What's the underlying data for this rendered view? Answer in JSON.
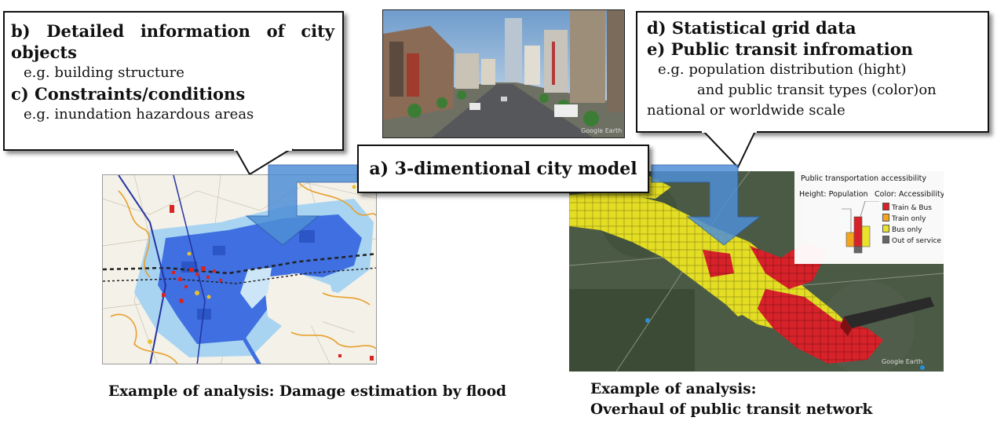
{
  "callouts": {
    "b_title": "b) Detailed information of city objects",
    "b_example": "e.g. building structure",
    "c_title": "c) Constraints/conditions",
    "c_example": "e.g. inundation hazardous areas",
    "d_title": "d) Statistical grid data",
    "e_title": "e) Public transit infromation",
    "e_example_line1": "e.g. population distribution (hight)",
    "e_example_line2": "and public transit types (color)on",
    "e_example_line3": "national or worldwide scale",
    "a_title": "a) 3-dimentional city model"
  },
  "legend": {
    "title": "Public transportation accessibility",
    "height_label": "Height: Population",
    "color_label": "Color: Accessibility",
    "items": [
      {
        "label": "Train & Bus",
        "color": "#d8222a"
      },
      {
        "label": "Train only",
        "color": "#f2a51d"
      },
      {
        "label": "Bus only",
        "color": "#e8e22a"
      },
      {
        "label": "Out of service",
        "color": "#666666"
      }
    ]
  },
  "watermarks": {
    "city_photo": "Google Earth",
    "transit_map": "Google Earth"
  },
  "captions": {
    "left": "Example of analysis: Damage estimation by flood",
    "right_line1": "Example of analysis:",
    "right_line2": "Overhaul of public transit network"
  },
  "colors": {
    "arrow": "#4f8fd6",
    "flood_blue": "#3f6fe0",
    "flood_light": "#a8d4f2"
  }
}
